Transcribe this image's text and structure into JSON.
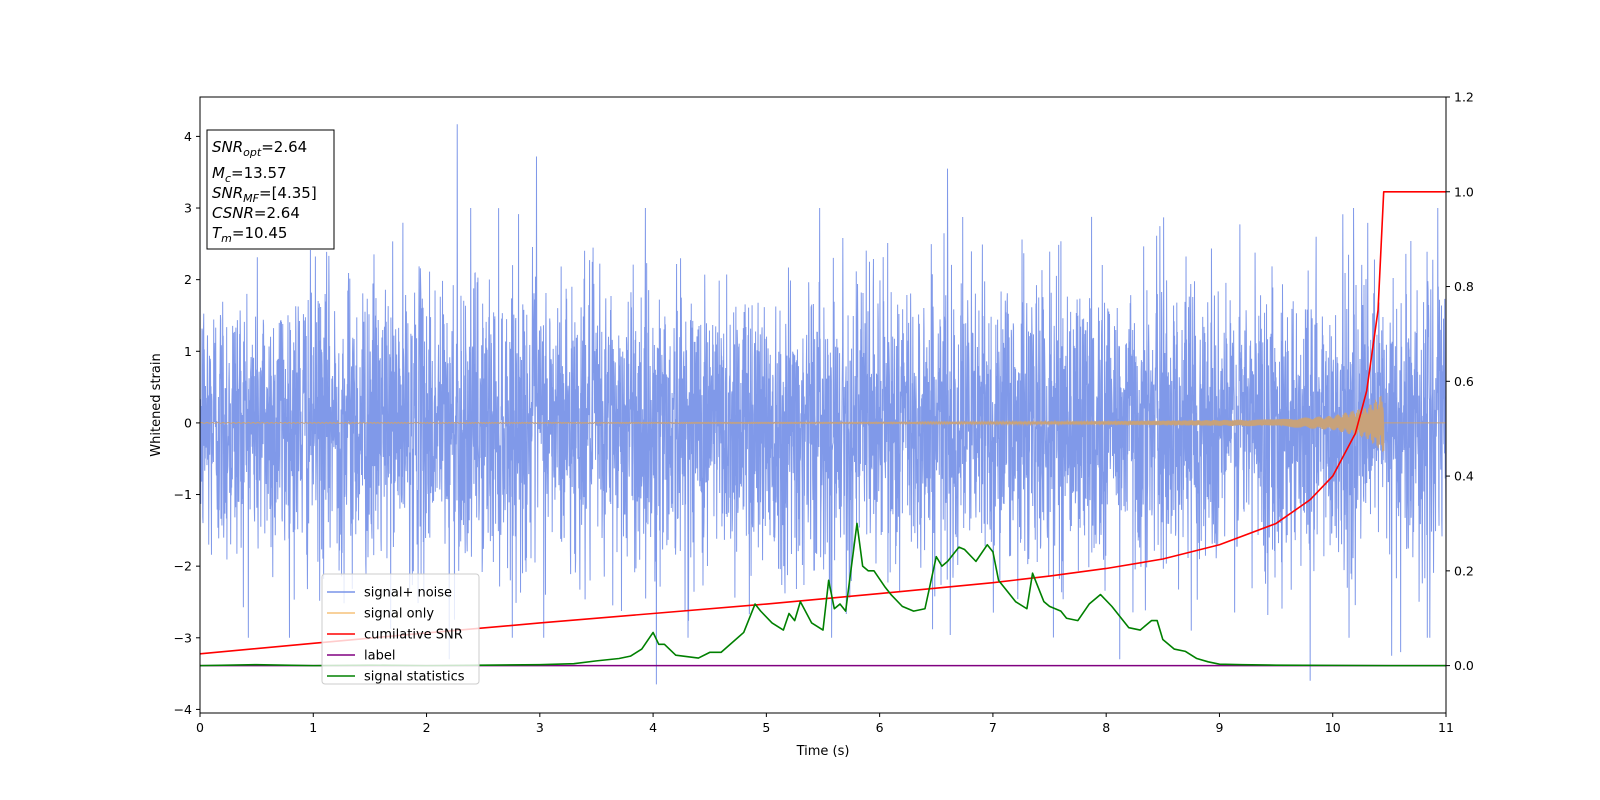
{
  "chart_data": {
    "type": "line",
    "title": "",
    "xlabel": "Time (s)",
    "ylabel": "Whitened strain",
    "y2label": "",
    "xlim": [
      0,
      11
    ],
    "ylim": [
      -4.05,
      4.55
    ],
    "y2lim": [
      -0.1,
      1.2
    ],
    "xticks": [
      "0",
      "1",
      "2",
      "3",
      "4",
      "5",
      "6",
      "7",
      "8",
      "9",
      "10",
      "11"
    ],
    "yticks": [
      "−4",
      "−3",
      "−2",
      "−1",
      "0",
      "1",
      "2",
      "3",
      "4"
    ],
    "y2ticks": [
      "0.0",
      "0.2",
      "0.4",
      "0.6",
      "0.8",
      "1.0",
      "1.2"
    ],
    "grid": false,
    "legend": {
      "location": "lower-left",
      "entries": [
        {
          "label": "signal+ noise",
          "color": "#7994e8"
        },
        {
          "label": "signal only",
          "color": "#f5c27a"
        },
        {
          "label": "cumilative SNR",
          "color": "#ff0000"
        },
        {
          "label": "label",
          "color": "#800080"
        },
        {
          "label": "signal statistics",
          "color": "#008000"
        }
      ]
    },
    "annotation": {
      "snr_opt": {
        "name": "SNR",
        "sub": "opt",
        "value": "=2.64"
      },
      "mc": {
        "name": "M",
        "sub": "c",
        "value": "=13.57"
      },
      "snr_mf": {
        "name": "SNR",
        "sub": "MF",
        "value": "=[4.35]"
      },
      "csnr": {
        "name": "CSNR",
        "value": "=2.64"
      },
      "tm": {
        "name": "T",
        "sub": "m",
        "value": "=10.45"
      }
    },
    "series": [
      {
        "name": "signal+ noise",
        "axis": "left",
        "color": "#7994e8",
        "description": "whitened noise spanning approx -3.6 to 4.2",
        "noise_sigma": 1.0,
        "spikes": [
          [
            2.27,
            4.17
          ],
          [
            2.97,
            3.72
          ],
          [
            6.6,
            3.55
          ],
          [
            4.03,
            -3.65
          ],
          [
            9.8,
            -3.6
          ],
          [
            2.2,
            -3.3
          ],
          [
            8.12,
            -3.3
          ],
          [
            10.52,
            -3.25
          ],
          [
            10.6,
            -3.2
          ]
        ]
      },
      {
        "name": "signal only",
        "axis": "left",
        "color": "#f5c27a",
        "description": "chirp near zero growing until t=10.45",
        "envelope": {
          "x": [
            0,
            6,
            8,
            9.5,
            10.0,
            10.3,
            10.45
          ],
          "y": [
            0.005,
            0.01,
            0.025,
            0.05,
            0.1,
            0.22,
            0.42
          ]
        }
      },
      {
        "name": "cumilative SNR",
        "axis": "right",
        "color": "#ff0000",
        "x": [
          0,
          1,
          2,
          3,
          4,
          5,
          6,
          7,
          7.5,
          8,
          8.5,
          9,
          9.5,
          9.8,
          10,
          10.2,
          10.3,
          10.4,
          10.45,
          11
        ],
        "y": [
          0.025,
          0.047,
          0.069,
          0.09,
          0.11,
          0.13,
          0.152,
          0.175,
          0.189,
          0.205,
          0.225,
          0.255,
          0.3,
          0.35,
          0.4,
          0.49,
          0.58,
          0.75,
          1.0,
          1.0
        ]
      },
      {
        "name": "label",
        "axis": "right",
        "color": "#800080",
        "x": [
          0,
          11
        ],
        "y": [
          0,
          0
        ]
      },
      {
        "name": "signal statistics",
        "axis": "right",
        "color": "#008000",
        "x": [
          0,
          0.5,
          1,
          1.5,
          2,
          2.5,
          3,
          3.3,
          3.5,
          3.7,
          3.8,
          3.9,
          4.0,
          4.05,
          4.1,
          4.2,
          4.4,
          4.5,
          4.6,
          4.8,
          4.9,
          4.95,
          5.05,
          5.15,
          5.2,
          5.25,
          5.3,
          5.4,
          5.5,
          5.55,
          5.6,
          5.65,
          5.7,
          5.8,
          5.85,
          5.9,
          5.95,
          6.05,
          6.1,
          6.2,
          6.3,
          6.4,
          6.5,
          6.55,
          6.6,
          6.7,
          6.75,
          6.85,
          6.95,
          7.0,
          7.05,
          7.15,
          7.2,
          7.3,
          7.35,
          7.45,
          7.5,
          7.6,
          7.65,
          7.75,
          7.85,
          7.95,
          8.05,
          8.1,
          8.2,
          8.3,
          8.4,
          8.45,
          8.5,
          8.6,
          8.7,
          8.8,
          8.9,
          9.0,
          9.2,
          9.5,
          10,
          10.5,
          11
        ],
        "y": [
          0,
          0.002,
          0,
          0.001,
          0,
          0.001,
          0.002,
          0.004,
          0.01,
          0.015,
          0.02,
          0.035,
          0.07,
          0.045,
          0.045,
          0.022,
          0.016,
          0.028,
          0.028,
          0.07,
          0.13,
          0.115,
          0.09,
          0.075,
          0.11,
          0.095,
          0.135,
          0.09,
          0.075,
          0.18,
          0.12,
          0.13,
          0.115,
          0.3,
          0.21,
          0.2,
          0.2,
          0.165,
          0.15,
          0.125,
          0.115,
          0.12,
          0.23,
          0.21,
          0.22,
          0.25,
          0.245,
          0.22,
          0.255,
          0.24,
          0.18,
          0.15,
          0.135,
          0.12,
          0.195,
          0.135,
          0.125,
          0.115,
          0.1,
          0.095,
          0.13,
          0.15,
          0.125,
          0.11,
          0.08,
          0.075,
          0.095,
          0.095,
          0.055,
          0.035,
          0.03,
          0.015,
          0.008,
          0.003,
          0.002,
          0.001,
          0.0005,
          0,
          0
        ]
      }
    ]
  }
}
